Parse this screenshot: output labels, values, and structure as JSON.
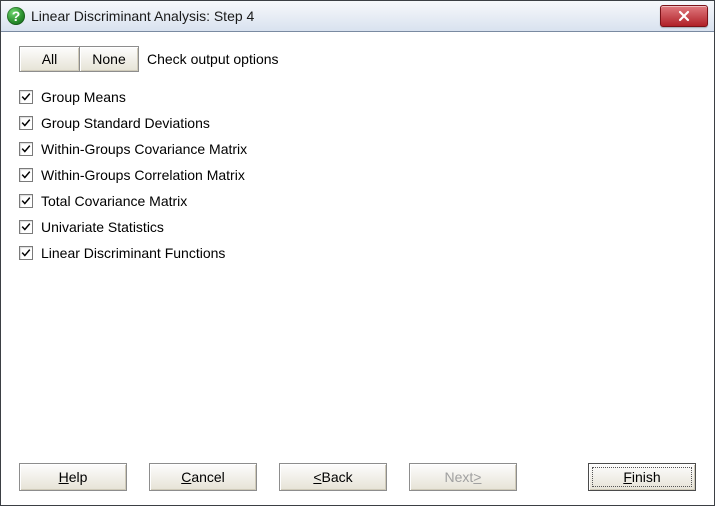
{
  "window": {
    "title": "Linear Discriminant Analysis: Step 4"
  },
  "toolbar": {
    "all_label": "All",
    "none_label": "None",
    "hint": "Check output options"
  },
  "options": [
    {
      "label": "Group Means",
      "checked": true
    },
    {
      "label": "Group Standard Deviations",
      "checked": true
    },
    {
      "label": "Within-Groups Covariance Matrix",
      "checked": true
    },
    {
      "label": "Within-Groups Correlation Matrix",
      "checked": true
    },
    {
      "label": "Total Covariance Matrix",
      "checked": true
    },
    {
      "label": "Univariate Statistics",
      "checked": true
    },
    {
      "label": "Linear Discriminant Functions",
      "checked": true
    }
  ],
  "footer": {
    "help": {
      "pre": "",
      "accel": "H",
      "post": "elp"
    },
    "cancel": {
      "pre": "",
      "accel": "C",
      "post": "ancel"
    },
    "back": {
      "pre": "",
      "lt": "<",
      "space": " ",
      "accel": "B",
      "post": "ack"
    },
    "next": {
      "pre": "Next ",
      "gt": ">",
      "accel_pos": "none",
      "disabled": true,
      "text": "Next >"
    },
    "finish": {
      "pre": "",
      "accel": "F",
      "post": "inish",
      "default": true
    }
  },
  "colors": {
    "titlebar_start": "#f6f8fb",
    "titlebar_end": "#d9e2ef",
    "client_bg": "#ffffff",
    "button_face": "#ece9d8",
    "text": "#000000",
    "disabled_text": "#a0a0a0",
    "close_start": "#e07a7f",
    "close_end": "#b02128",
    "icon_green": "#2a8f2e"
  }
}
